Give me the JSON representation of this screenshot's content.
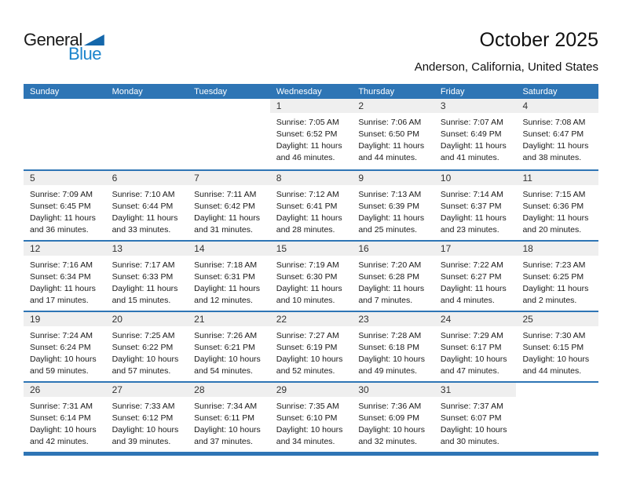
{
  "logo": {
    "word1": "General",
    "word2": "Blue"
  },
  "header": {
    "title": "October 2025",
    "subtitle": "Anderson, California, United States"
  },
  "colors": {
    "header_blue": "#2e75b5",
    "row_divider_blue": "#2e75b5",
    "bottom_bar_blue": "#2e75b5",
    "date_band_gray": "#efefef",
    "logo_blue": "#1b84cc",
    "logo_triangle_blue": "#1467ab",
    "day_header_text": "#ffffff"
  },
  "calendar": {
    "day_headers": [
      "Sunday",
      "Monday",
      "Tuesday",
      "Wednesday",
      "Thursday",
      "Friday",
      "Saturday"
    ],
    "labels": {
      "sunrise": "Sunrise:",
      "sunset": "Sunset:",
      "daylight": "Daylight:"
    },
    "weeks": [
      [
        null,
        null,
        null,
        {
          "date": 1,
          "sunrise": "7:05 AM",
          "sunset": "6:52 PM",
          "daylight": "11 hours and 46 minutes."
        },
        {
          "date": 2,
          "sunrise": "7:06 AM",
          "sunset": "6:50 PM",
          "daylight": "11 hours and 44 minutes."
        },
        {
          "date": 3,
          "sunrise": "7:07 AM",
          "sunset": "6:49 PM",
          "daylight": "11 hours and 41 minutes."
        },
        {
          "date": 4,
          "sunrise": "7:08 AM",
          "sunset": "6:47 PM",
          "daylight": "11 hours and 38 minutes."
        }
      ],
      [
        {
          "date": 5,
          "sunrise": "7:09 AM",
          "sunset": "6:45 PM",
          "daylight": "11 hours and 36 minutes."
        },
        {
          "date": 6,
          "sunrise": "7:10 AM",
          "sunset": "6:44 PM",
          "daylight": "11 hours and 33 minutes."
        },
        {
          "date": 7,
          "sunrise": "7:11 AM",
          "sunset": "6:42 PM",
          "daylight": "11 hours and 31 minutes."
        },
        {
          "date": 8,
          "sunrise": "7:12 AM",
          "sunset": "6:41 PM",
          "daylight": "11 hours and 28 minutes."
        },
        {
          "date": 9,
          "sunrise": "7:13 AM",
          "sunset": "6:39 PM",
          "daylight": "11 hours and 25 minutes."
        },
        {
          "date": 10,
          "sunrise": "7:14 AM",
          "sunset": "6:37 PM",
          "daylight": "11 hours and 23 minutes."
        },
        {
          "date": 11,
          "sunrise": "7:15 AM",
          "sunset": "6:36 PM",
          "daylight": "11 hours and 20 minutes."
        }
      ],
      [
        {
          "date": 12,
          "sunrise": "7:16 AM",
          "sunset": "6:34 PM",
          "daylight": "11 hours and 17 minutes."
        },
        {
          "date": 13,
          "sunrise": "7:17 AM",
          "sunset": "6:33 PM",
          "daylight": "11 hours and 15 minutes."
        },
        {
          "date": 14,
          "sunrise": "7:18 AM",
          "sunset": "6:31 PM",
          "daylight": "11 hours and 12 minutes."
        },
        {
          "date": 15,
          "sunrise": "7:19 AM",
          "sunset": "6:30 PM",
          "daylight": "11 hours and 10 minutes."
        },
        {
          "date": 16,
          "sunrise": "7:20 AM",
          "sunset": "6:28 PM",
          "daylight": "11 hours and 7 minutes."
        },
        {
          "date": 17,
          "sunrise": "7:22 AM",
          "sunset": "6:27 PM",
          "daylight": "11 hours and 4 minutes."
        },
        {
          "date": 18,
          "sunrise": "7:23 AM",
          "sunset": "6:25 PM",
          "daylight": "11 hours and 2 minutes."
        }
      ],
      [
        {
          "date": 19,
          "sunrise": "7:24 AM",
          "sunset": "6:24 PM",
          "daylight": "10 hours and 59 minutes."
        },
        {
          "date": 20,
          "sunrise": "7:25 AM",
          "sunset": "6:22 PM",
          "daylight": "10 hours and 57 minutes."
        },
        {
          "date": 21,
          "sunrise": "7:26 AM",
          "sunset": "6:21 PM",
          "daylight": "10 hours and 54 minutes."
        },
        {
          "date": 22,
          "sunrise": "7:27 AM",
          "sunset": "6:19 PM",
          "daylight": "10 hours and 52 minutes."
        },
        {
          "date": 23,
          "sunrise": "7:28 AM",
          "sunset": "6:18 PM",
          "daylight": "10 hours and 49 minutes."
        },
        {
          "date": 24,
          "sunrise": "7:29 AM",
          "sunset": "6:17 PM",
          "daylight": "10 hours and 47 minutes."
        },
        {
          "date": 25,
          "sunrise": "7:30 AM",
          "sunset": "6:15 PM",
          "daylight": "10 hours and 44 minutes."
        }
      ],
      [
        {
          "date": 26,
          "sunrise": "7:31 AM",
          "sunset": "6:14 PM",
          "daylight": "10 hours and 42 minutes."
        },
        {
          "date": 27,
          "sunrise": "7:33 AM",
          "sunset": "6:12 PM",
          "daylight": "10 hours and 39 minutes."
        },
        {
          "date": 28,
          "sunrise": "7:34 AM",
          "sunset": "6:11 PM",
          "daylight": "10 hours and 37 minutes."
        },
        {
          "date": 29,
          "sunrise": "7:35 AM",
          "sunset": "6:10 PM",
          "daylight": "10 hours and 34 minutes."
        },
        {
          "date": 30,
          "sunrise": "7:36 AM",
          "sunset": "6:09 PM",
          "daylight": "10 hours and 32 minutes."
        },
        {
          "date": 31,
          "sunrise": "7:37 AM",
          "sunset": "6:07 PM",
          "daylight": "10 hours and 30 minutes."
        },
        null
      ]
    ]
  }
}
